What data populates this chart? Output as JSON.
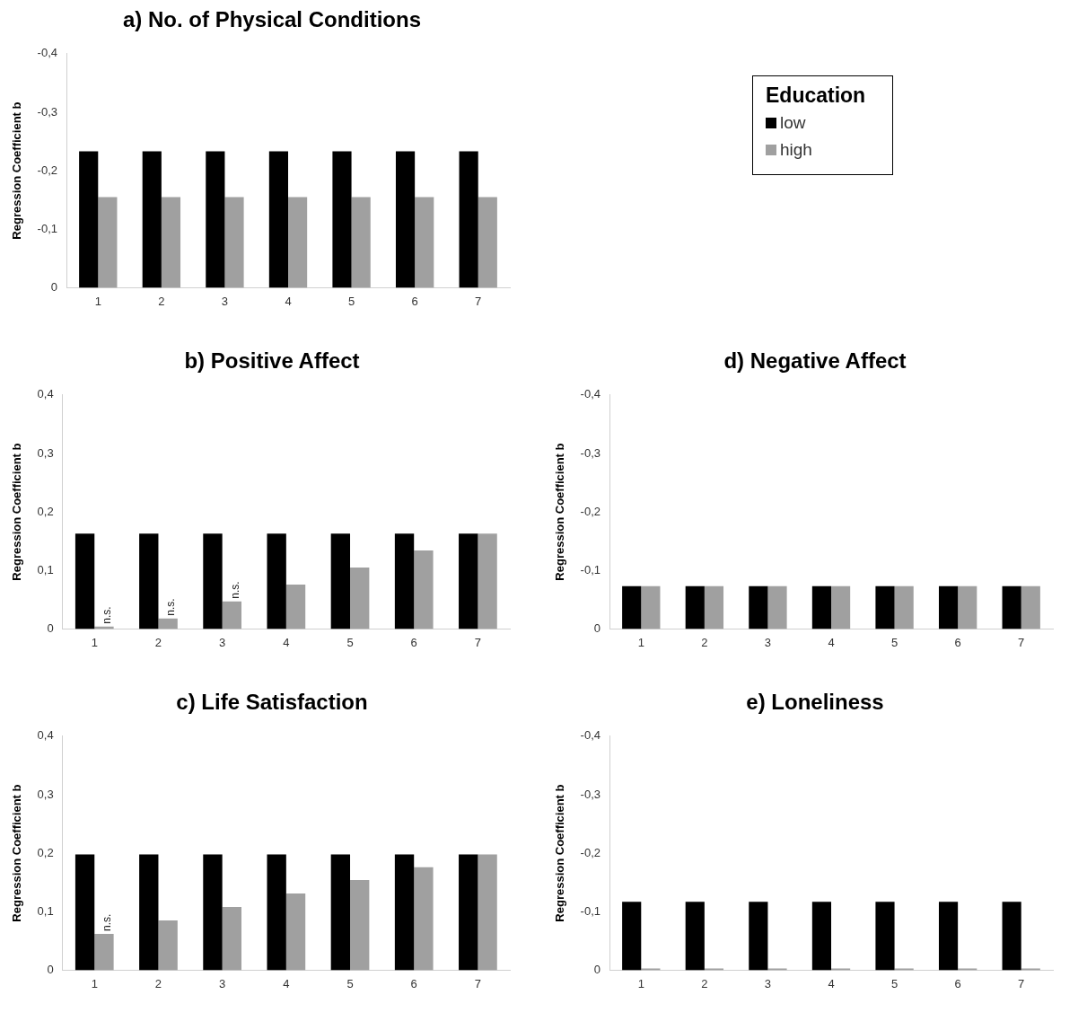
{
  "chart_data": [
    {
      "type": "bar",
      "title": "a) No. of Physical Conditions",
      "ylabel": "Regression Coefficient b",
      "legend_title": "Education",
      "legend": "right",
      "grid": false,
      "categories": [
        "1",
        "2",
        "3",
        "4",
        "5",
        "6",
        "7"
      ],
      "ylim": [
        0,
        -0.4
      ],
      "yticks": [
        {
          "value": 0,
          "label": "0"
        },
        {
          "value": -0.1,
          "label": "-0,1"
        },
        {
          "value": -0.2,
          "label": "-0,2"
        },
        {
          "value": -0.3,
          "label": "-0,3"
        },
        {
          "value": -0.4,
          "label": "-0,4"
        }
      ],
      "series": [
        {
          "name": "low",
          "color": "#000000",
          "values": [
            -0.233,
            -0.233,
            -0.233,
            -0.233,
            -0.233,
            -0.233,
            -0.233
          ]
        },
        {
          "name": "high",
          "color": "#a0a0a0",
          "values": [
            -0.155,
            -0.155,
            -0.155,
            -0.155,
            -0.155,
            -0.155,
            -0.155
          ]
        }
      ]
    },
    {
      "type": "bar",
      "title": "b) Positive Affect",
      "ylabel": "Regression Coefficient b",
      "grid": false,
      "categories": [
        "1",
        "2",
        "3",
        "4",
        "5",
        "6",
        "7"
      ],
      "ylim": [
        0,
        0.4
      ],
      "yticks": [
        {
          "value": 0,
          "label": "0"
        },
        {
          "value": 0.1,
          "label": "0,1"
        },
        {
          "value": 0.2,
          "label": "0,2"
        },
        {
          "value": 0.3,
          "label": "0,3"
        },
        {
          "value": 0.4,
          "label": "0,4"
        }
      ],
      "series": [
        {
          "color": "#000000",
          "values": [
            0.163,
            0.163,
            0.163,
            0.163,
            0.163,
            0.163,
            0.163
          ]
        },
        {
          "color": "#a0a0a0",
          "values": [
            0.004,
            0.018,
            0.047,
            0.076,
            0.105,
            0.134,
            0.163
          ]
        }
      ],
      "annotations": [
        {
          "text": "n.s.",
          "x": "1",
          "y": 0.004
        },
        {
          "text": "n.s.",
          "x": "2",
          "y": 0.018
        },
        {
          "text": "n.s.",
          "x": "3",
          "y": 0.047
        }
      ]
    },
    {
      "type": "bar",
      "title": "c) Life Satisfaction",
      "ylabel": "Regression Coefficient b",
      "grid": false,
      "categories": [
        "1",
        "2",
        "3",
        "4",
        "5",
        "6",
        "7"
      ],
      "ylim": [
        0,
        0.4
      ],
      "yticks": [
        {
          "value": 0,
          "label": "0"
        },
        {
          "value": 0.1,
          "label": "0,1"
        },
        {
          "value": 0.2,
          "label": "0,2"
        },
        {
          "value": 0.3,
          "label": "0,3"
        },
        {
          "value": 0.4,
          "label": "0,4"
        }
      ],
      "series": [
        {
          "color": "#000000",
          "values": [
            0.198,
            0.198,
            0.198,
            0.198,
            0.198,
            0.198,
            0.198
          ]
        },
        {
          "color": "#a0a0a0",
          "values": [
            0.062,
            0.085,
            0.108,
            0.131,
            0.154,
            0.176,
            0.198
          ]
        }
      ],
      "annotations": [
        {
          "text": "n.s.",
          "x": "1",
          "y": 0.062
        }
      ]
    },
    {
      "type": "bar",
      "title": "d) Negative Affect",
      "ylabel": "Regression Coefficient b",
      "grid": false,
      "categories": [
        "1",
        "2",
        "3",
        "4",
        "5",
        "6",
        "7"
      ],
      "ylim": [
        0,
        -0.4
      ],
      "yticks": [
        {
          "value": 0,
          "label": "0"
        },
        {
          "value": -0.1,
          "label": "-0,1"
        },
        {
          "value": -0.2,
          "label": "-0,2"
        },
        {
          "value": -0.3,
          "label": "-0,3"
        },
        {
          "value": -0.4,
          "label": "-0,4"
        }
      ],
      "series": [
        {
          "color": "#000000",
          "values": [
            -0.073,
            -0.073,
            -0.073,
            -0.073,
            -0.073,
            -0.073,
            -0.073
          ]
        },
        {
          "color": "#a0a0a0",
          "values": [
            -0.073,
            -0.073,
            -0.073,
            -0.073,
            -0.073,
            -0.073,
            -0.073
          ]
        }
      ]
    },
    {
      "type": "bar",
      "title": "e) Loneliness",
      "ylabel": "Regression Coefficient b",
      "grid": false,
      "categories": [
        "1",
        "2",
        "3",
        "4",
        "5",
        "6",
        "7"
      ],
      "ylim": [
        0,
        -0.4
      ],
      "yticks": [
        {
          "value": 0,
          "label": "0"
        },
        {
          "value": -0.1,
          "label": "-0,1"
        },
        {
          "value": -0.2,
          "label": "-0,2"
        },
        {
          "value": -0.3,
          "label": "-0,3"
        },
        {
          "value": -0.4,
          "label": "-0,4"
        }
      ],
      "series": [
        {
          "color": "#000000",
          "values": [
            -0.117,
            -0.117,
            -0.117,
            -0.117,
            -0.117,
            -0.117,
            -0.117
          ]
        },
        {
          "color": "#a0a0a0",
          "values": [
            -0.003,
            -0.003,
            -0.003,
            -0.003,
            -0.003,
            -0.003,
            -0.003
          ]
        }
      ]
    }
  ]
}
